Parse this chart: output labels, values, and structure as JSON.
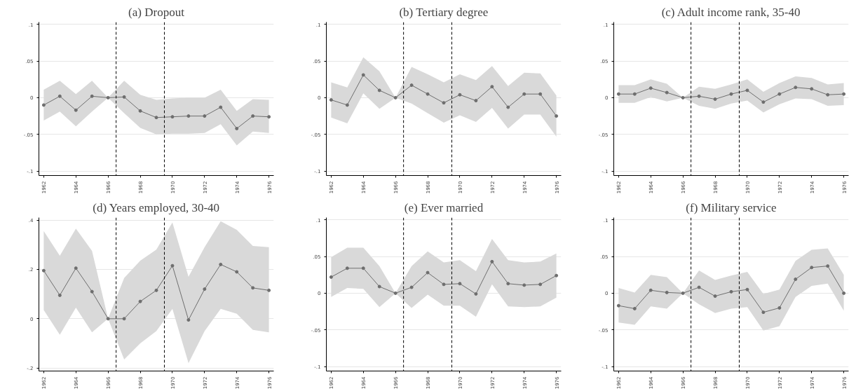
{
  "chart_data": [
    {
      "type": "line",
      "title": "(a) Dropout",
      "x": [
        1962,
        1963,
        1964,
        1965,
        1966,
        1967,
        1968,
        1969,
        1970,
        1971,
        1972,
        1973,
        1974,
        1975,
        1976
      ],
      "series": [
        {
          "color": "#6e6e6e",
          "values": [
            -0.01,
            0.002,
            -0.017,
            0.002,
            0,
            0.001,
            -0.018,
            -0.027,
            -0.026,
            -0.025,
            -0.025,
            -0.013,
            -0.042,
            -0.025,
            -0.026
          ],
          "upper": [
            0.011,
            0.023,
            0.005,
            0.023,
            0,
            0.023,
            0.004,
            -0.003,
            -0.001,
            0,
            0,
            0.011,
            -0.018,
            -0.002,
            -0.003
          ],
          "lower": [
            -0.031,
            -0.019,
            -0.039,
            -0.019,
            0,
            -0.021,
            -0.041,
            -0.05,
            -0.049,
            -0.049,
            -0.048,
            -0.036,
            -0.065,
            -0.046,
            -0.048
          ]
        }
      ],
      "xlim": [
        1961.7,
        1976.3
      ],
      "xticks": [
        1962,
        1964,
        1966,
        1968,
        1970,
        1972,
        1974,
        1976
      ],
      "ylim": [
        -0.106,
        0.103
      ],
      "yticks": [
        {
          "value": -0.1,
          "label": "-.1"
        },
        {
          "value": -0.05,
          "label": "-.05"
        },
        0,
        {
          "value": 0.05,
          "label": ".05"
        },
        {
          "value": 0.1,
          "label": ".1"
        }
      ],
      "ref_lines": [
        {
          "axis": "x",
          "value": 1966.5,
          "line_style": "dashed",
          "color": "#000000"
        },
        {
          "axis": "x",
          "value": 1969.5,
          "line_style": "dashed",
          "color": "#000000"
        }
      ],
      "grid": "y",
      "marker": "circle"
    },
    {
      "type": "line",
      "title": "(b) Tertiary degree",
      "x": [
        1962,
        1963,
        1964,
        1965,
        1966,
        1967,
        1968,
        1969,
        1970,
        1971,
        1972,
        1973,
        1974,
        1975,
        1976
      ],
      "series": [
        {
          "color": "#6e6e6e",
          "values": [
            -0.003,
            -0.01,
            0.031,
            0.01,
            0,
            0.017,
            0.005,
            -0.007,
            0.004,
            -0.004,
            0.015,
            -0.013,
            0.005,
            0.005,
            -0.025
          ],
          "upper": [
            0.021,
            0.014,
            0.055,
            0.036,
            0,
            0.042,
            0.032,
            0.021,
            0.032,
            0.024,
            0.043,
            0.016,
            0.034,
            0.033,
            0.003
          ],
          "lower": [
            -0.027,
            -0.035,
            0.006,
            -0.015,
            0,
            -0.008,
            -0.021,
            -0.034,
            -0.024,
            -0.033,
            -0.014,
            -0.042,
            -0.023,
            -0.023,
            -0.053
          ]
        }
      ],
      "xlim": [
        1961.7,
        1976.3
      ],
      "xticks": [
        1962,
        1964,
        1966,
        1968,
        1970,
        1972,
        1974,
        1976
      ],
      "ylim": [
        -0.106,
        0.103
      ],
      "yticks": [
        {
          "value": -0.1,
          "label": "-.1"
        },
        {
          "value": -0.05,
          "label": "-.05"
        },
        0,
        {
          "value": 0.05,
          "label": ".05"
        },
        {
          "value": 0.1,
          "label": ".1"
        }
      ],
      "ref_lines": [
        {
          "axis": "x",
          "value": 1966.5,
          "line_style": "dashed",
          "color": "#000000"
        },
        {
          "axis": "x",
          "value": 1969.5,
          "line_style": "dashed",
          "color": "#000000"
        }
      ],
      "grid": "y",
      "marker": "circle"
    },
    {
      "type": "line",
      "title": "(c) Adult income rank, 35-40",
      "x": [
        1962,
        1963,
        1964,
        1965,
        1966,
        1967,
        1968,
        1969,
        1970,
        1971,
        1972,
        1973,
        1974,
        1975,
        1976
      ],
      "series": [
        {
          "color": "#6e6e6e",
          "values": [
            0.005,
            0.005,
            0.013,
            0.007,
            0,
            0.002,
            -0.002,
            0.005,
            0.01,
            -0.006,
            0.005,
            0.014,
            0.012,
            0.004,
            0.005
          ],
          "upper": [
            0.017,
            0.017,
            0.025,
            0.019,
            0,
            0.015,
            0.012,
            0.018,
            0.025,
            0.008,
            0.02,
            0.029,
            0.027,
            0.018,
            0.02
          ],
          "lower": [
            -0.007,
            -0.007,
            0.001,
            -0.005,
            0,
            -0.011,
            -0.015,
            -0.008,
            -0.004,
            -0.02,
            -0.009,
            -0.001,
            -0.002,
            -0.011,
            -0.01
          ]
        }
      ],
      "xlim": [
        1961.7,
        1976.3
      ],
      "xticks": [
        1962,
        1964,
        1966,
        1968,
        1970,
        1972,
        1974,
        1976
      ],
      "ylim": [
        -0.106,
        0.103
      ],
      "yticks": [
        {
          "value": -0.1,
          "label": "-.1"
        },
        {
          "value": -0.05,
          "label": "-.05"
        },
        0,
        {
          "value": 0.05,
          "label": ".05"
        },
        {
          "value": 0.1,
          "label": ".1"
        }
      ],
      "ref_lines": [
        {
          "axis": "x",
          "value": 1966.5,
          "line_style": "dashed",
          "color": "#000000"
        },
        {
          "axis": "x",
          "value": 1969.5,
          "line_style": "dashed",
          "color": "#000000"
        }
      ],
      "grid": "y",
      "marker": "circle"
    },
    {
      "type": "line",
      "title": "(d) Years employed, 30-40",
      "x": [
        1962,
        1963,
        1964,
        1965,
        1966,
        1967,
        1968,
        1969,
        1970,
        1971,
        1972,
        1973,
        1974,
        1975,
        1976
      ],
      "series": [
        {
          "color": "#6e6e6e",
          "values": [
            0.195,
            0.095,
            0.205,
            0.11,
            0,
            0,
            0.07,
            0.115,
            0.215,
            -0.005,
            0.12,
            0.22,
            0.19,
            0.125,
            0.115
          ],
          "upper": [
            0.355,
            0.255,
            0.365,
            0.275,
            0,
            0.165,
            0.235,
            0.28,
            0.39,
            0.17,
            0.29,
            0.395,
            0.36,
            0.295,
            0.29
          ],
          "lower": [
            0.035,
            -0.065,
            0.045,
            -0.055,
            0,
            -0.165,
            -0.1,
            -0.05,
            0.04,
            -0.18,
            -0.05,
            0.04,
            0.02,
            -0.045,
            -0.055
          ]
        }
      ],
      "xlim": [
        1961.7,
        1976.3
      ],
      "xticks": [
        1962,
        1964,
        1966,
        1968,
        1970,
        1972,
        1974,
        1976
      ],
      "ylim": [
        -0.212,
        0.41
      ],
      "yticks": [
        {
          "value": -0.2,
          "label": "-.2"
        },
        0,
        {
          "value": 0.2,
          "label": ".2"
        },
        {
          "value": 0.4,
          "label": ".4"
        }
      ],
      "ref_lines": [
        {
          "axis": "x",
          "value": 1966.5,
          "line_style": "dashed",
          "color": "#000000"
        },
        {
          "axis": "x",
          "value": 1969.5,
          "line_style": "dashed",
          "color": "#000000"
        }
      ],
      "grid": "y",
      "marker": "circle"
    },
    {
      "type": "line",
      "title": "(e) Ever married",
      "x": [
        1962,
        1963,
        1964,
        1965,
        1966,
        1967,
        1968,
        1969,
        1970,
        1971,
        1972,
        1973,
        1974,
        1975,
        1976
      ],
      "series": [
        {
          "color": "#6e6e6e",
          "values": [
            0.022,
            0.034,
            0.034,
            0.009,
            0,
            0.008,
            0.028,
            0.012,
            0.013,
            -0.001,
            0.043,
            0.013,
            0.011,
            0.012,
            0.024
          ],
          "upper": [
            0.049,
            0.062,
            0.062,
            0.037,
            0,
            0.037,
            0.057,
            0.042,
            0.045,
            0.03,
            0.074,
            0.045,
            0.042,
            0.043,
            0.054
          ],
          "lower": [
            -0.005,
            0.007,
            0.006,
            -0.019,
            0,
            -0.02,
            -0.002,
            -0.017,
            -0.017,
            -0.032,
            0.012,
            -0.018,
            -0.019,
            -0.018,
            -0.006
          ]
        }
      ],
      "xlim": [
        1961.7,
        1976.3
      ],
      "xticks": [
        1962,
        1964,
        1966,
        1968,
        1970,
        1972,
        1974,
        1976
      ],
      "ylim": [
        -0.106,
        0.103
      ],
      "yticks": [
        {
          "value": -0.1,
          "label": "-.1"
        },
        {
          "value": -0.05,
          "label": "-.05"
        },
        0,
        {
          "value": 0.05,
          "label": ".05"
        },
        {
          "value": 0.1,
          "label": ".1"
        }
      ],
      "ref_lines": [
        {
          "axis": "x",
          "value": 1966.5,
          "line_style": "dashed",
          "color": "#000000"
        },
        {
          "axis": "x",
          "value": 1969.5,
          "line_style": "dashed",
          "color": "#000000"
        }
      ],
      "grid": "y",
      "marker": "circle"
    },
    {
      "type": "line",
      "title": "(f) Military service",
      "x": [
        1962,
        1963,
        1964,
        1965,
        1966,
        1967,
        1968,
        1969,
        1970,
        1971,
        1972,
        1973,
        1974,
        1975,
        1976
      ],
      "series": [
        {
          "color": "#6e6e6e",
          "values": [
            -0.017,
            -0.021,
            0.004,
            0.001,
            0,
            0.008,
            -0.004,
            0.002,
            0.005,
            -0.026,
            -0.02,
            0.019,
            0.035,
            0.037,
            0
          ],
          "upper": [
            0.007,
            0.001,
            0.025,
            0.022,
            0,
            0.031,
            0.018,
            0.024,
            0.029,
            -0.001,
            0.005,
            0.044,
            0.059,
            0.061,
            0.025
          ],
          "lower": [
            -0.04,
            -0.043,
            -0.018,
            -0.021,
            0,
            -0.015,
            -0.027,
            -0.021,
            -0.019,
            -0.051,
            -0.045,
            -0.005,
            0.01,
            0.013,
            -0.024
          ]
        }
      ],
      "xlim": [
        1961.7,
        1976.3
      ],
      "xticks": [
        1962,
        1964,
        1966,
        1968,
        1970,
        1972,
        1974,
        1976
      ],
      "ylim": [
        -0.106,
        0.103
      ],
      "yticks": [
        {
          "value": -0.1,
          "label": "-.1"
        },
        {
          "value": -0.05,
          "label": "-.05"
        },
        0,
        {
          "value": 0.05,
          "label": ".05"
        },
        {
          "value": 0.1,
          "label": ".1"
        }
      ],
      "ref_lines": [
        {
          "axis": "x",
          "value": 1966.5,
          "line_style": "dashed",
          "color": "#000000"
        },
        {
          "axis": "x",
          "value": 1969.5,
          "line_style": "dashed",
          "color": "#000000"
        }
      ],
      "grid": "y",
      "marker": "circle"
    }
  ]
}
